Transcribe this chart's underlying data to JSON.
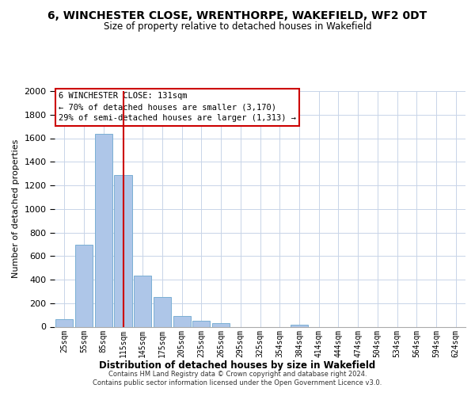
{
  "title": "6, WINCHESTER CLOSE, WRENTHORPE, WAKEFIELD, WF2 0DT",
  "subtitle": "Size of property relative to detached houses in Wakefield",
  "xlabel": "Distribution of detached houses by size in Wakefield",
  "ylabel": "Number of detached properties",
  "bar_labels": [
    "25sqm",
    "55sqm",
    "85sqm",
    "115sqm",
    "145sqm",
    "175sqm",
    "205sqm",
    "235sqm",
    "265sqm",
    "295sqm",
    "325sqm",
    "354sqm",
    "384sqm",
    "414sqm",
    "444sqm",
    "474sqm",
    "504sqm",
    "534sqm",
    "564sqm",
    "594sqm",
    "624sqm"
  ],
  "bar_values": [
    65,
    695,
    1635,
    1285,
    435,
    255,
    88,
    52,
    28,
    0,
    0,
    0,
    15,
    0,
    0,
    0,
    0,
    0,
    0,
    0,
    0
  ],
  "bar_color": "#aec6e8",
  "bar_edge_color": "#7bafd4",
  "vline_color": "#cc0000",
  "vline_x": 3.0,
  "ylim": [
    0,
    2000
  ],
  "yticks": [
    0,
    200,
    400,
    600,
    800,
    1000,
    1200,
    1400,
    1600,
    1800,
    2000
  ],
  "annotation_box_text": "6 WINCHESTER CLOSE: 131sqm\n← 70% of detached houses are smaller (3,170)\n29% of semi-detached houses are larger (1,313) →",
  "footer_text": "Contains HM Land Registry data © Crown copyright and database right 2024.\nContains public sector information licensed under the Open Government Licence v3.0.",
  "background_color": "#ffffff",
  "grid_color": "#c8d4e8"
}
